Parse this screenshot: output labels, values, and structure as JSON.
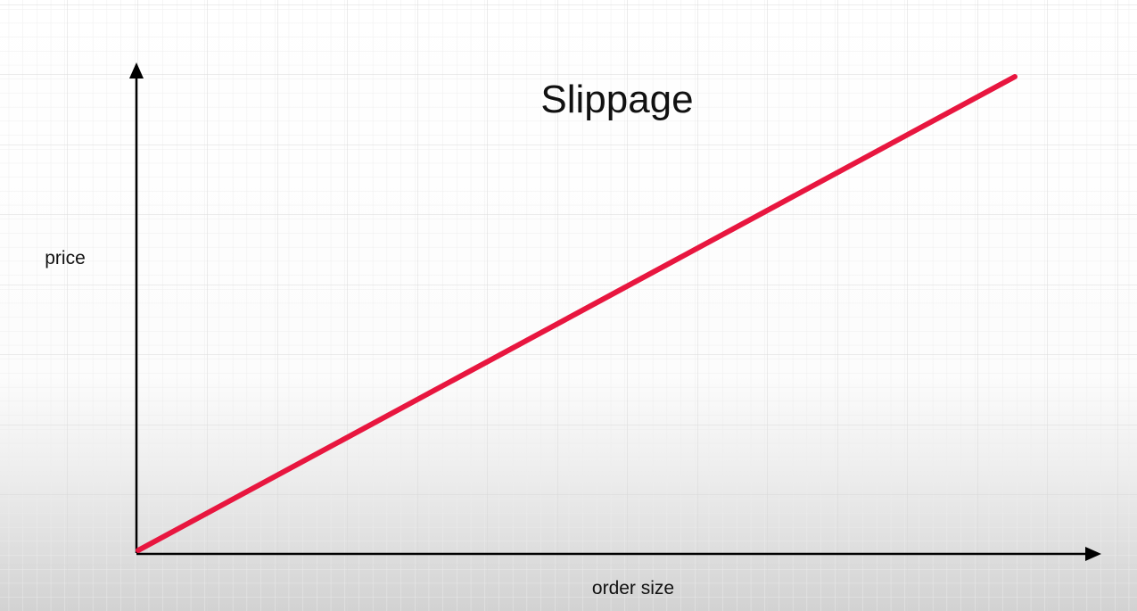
{
  "chart_data": {
    "type": "line",
    "title": "Slippage",
    "xlabel": "order size",
    "ylabel": "price",
    "xlim": [
      0,
      1
    ],
    "ylim": [
      0,
      1
    ],
    "tick_labels": false,
    "grid": true,
    "legend": "none",
    "series": [
      {
        "color": "#e8163f",
        "x": [
          0,
          0.915
        ],
        "y": [
          0,
          1
        ]
      }
    ]
  },
  "colors": {
    "line": "#e8163f",
    "axes": "#000000",
    "grid": "#d6d6d6",
    "text": "#111111"
  }
}
